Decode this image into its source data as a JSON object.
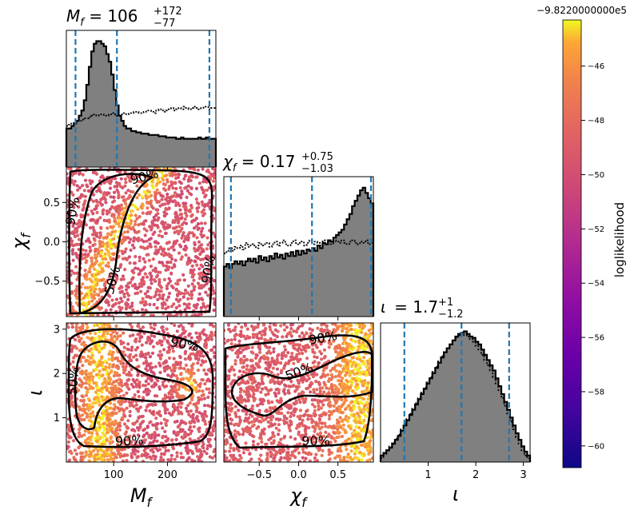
{
  "chart_data": {
    "type": "corner",
    "panels": [
      {
        "type": "histogram",
        "param": "M_f",
        "title": {
          "lhs": "M",
          "sub": "f",
          "value": "106",
          "plus": "+172",
          "minus": "−77"
        },
        "quantiles": [
          29,
          106,
          278
        ],
        "bins": {
          "x0": 12,
          "x1": 290,
          "heights": [
            0.3,
            0.3,
            0.32,
            0.34,
            0.36,
            0.4,
            0.44,
            0.52,
            0.64,
            0.78,
            0.9,
            0.96,
            0.98,
            0.98,
            0.96,
            0.94,
            0.88,
            0.82,
            0.72,
            0.6,
            0.48,
            0.4,
            0.36,
            0.32,
            0.3,
            0.3,
            0.28,
            0.28,
            0.27,
            0.27,
            0.26,
            0.26,
            0.26,
            0.25,
            0.25,
            0.25,
            0.25,
            0.24,
            0.24,
            0.24,
            0.23,
            0.23,
            0.23,
            0.23,
            0.22,
            0.22,
            0.23,
            0.22,
            0.22,
            0.22,
            0.22,
            0.22,
            0.22,
            0.23,
            0.22,
            0.22,
            0.23,
            0.22,
            0.22,
            0.22
          ]
        },
        "prior_heights": [
          0.32,
          0.33,
          0.34,
          0.35,
          0.36,
          0.36,
          0.37,
          0.38,
          0.38,
          0.39,
          0.4,
          0.41,
          0.4,
          0.41,
          0.41,
          0.4,
          0.4,
          0.41,
          0.42,
          0.41,
          0.4,
          0.4,
          0.41,
          0.42,
          0.41,
          0.42,
          0.42,
          0.43,
          0.43,
          0.42,
          0.42,
          0.43,
          0.44,
          0.44,
          0.43,
          0.42,
          0.44,
          0.45,
          0.44,
          0.43,
          0.44,
          0.45,
          0.46,
          0.44,
          0.45,
          0.46,
          0.45,
          0.47,
          0.46,
          0.45,
          0.46,
          0.47,
          0.46,
          0.45,
          0.46,
          0.47,
          0.47,
          0.45,
          0.46,
          0.46
        ]
      },
      {
        "type": "histogram",
        "param": "chi_f",
        "title": {
          "lhs": "χ",
          "sub": "f",
          "value": "0.17",
          "plus": "+0.75",
          "minus": "−1.03"
        },
        "quantiles": [
          -0.86,
          0.17,
          0.92
        ],
        "bins": {
          "x0": -0.95,
          "x1": 0.95,
          "heights": [
            0.38,
            0.4,
            0.37,
            0.4,
            0.42,
            0.4,
            0.42,
            0.39,
            0.42,
            0.44,
            0.42,
            0.44,
            0.41,
            0.46,
            0.43,
            0.45,
            0.42,
            0.46,
            0.44,
            0.48,
            0.45,
            0.47,
            0.44,
            0.48,
            0.46,
            0.49,
            0.46,
            0.5,
            0.47,
            0.5,
            0.48,
            0.51,
            0.5,
            0.52,
            0.5,
            0.54,
            0.52,
            0.56,
            0.55,
            0.58,
            0.57,
            0.6,
            0.62,
            0.64,
            0.66,
            0.7,
            0.74,
            0.78,
            0.84,
            0.88,
            0.92,
            0.96,
            0.98,
            0.94,
            0.9,
            0.86
          ]
        },
        "prior_heights": [
          0.48,
          0.5,
          0.52,
          0.5,
          0.53,
          0.52,
          0.54,
          0.51,
          0.56,
          0.53,
          0.55,
          0.54,
          0.52,
          0.56,
          0.54,
          0.55,
          0.56,
          0.53,
          0.55,
          0.57,
          0.54,
          0.56,
          0.58,
          0.55,
          0.54,
          0.56,
          0.58,
          0.55,
          0.56,
          0.57,
          0.54,
          0.56,
          0.58,
          0.55,
          0.57,
          0.56,
          0.54,
          0.58,
          0.56,
          0.57,
          0.55,
          0.58,
          0.57,
          0.56,
          0.58,
          0.56,
          0.55,
          0.57,
          0.58,
          0.56,
          0.55,
          0.57,
          0.56,
          0.58,
          0.55,
          0.56
        ]
      },
      {
        "type": "histogram",
        "param": "iota",
        "title": {
          "lhs": "ι",
          "sub": "",
          "value": "1.7",
          "plus": "+1",
          "minus": "−1.2"
        },
        "quantiles": [
          0.5,
          1.7,
          2.7
        ],
        "bins": {
          "x0": 0.0,
          "x1": 3.14,
          "heights": [
            0.05,
            0.07,
            0.09,
            0.11,
            0.14,
            0.17,
            0.2,
            0.24,
            0.28,
            0.32,
            0.36,
            0.4,
            0.44,
            0.48,
            0.52,
            0.56,
            0.6,
            0.64,
            0.68,
            0.72,
            0.76,
            0.8,
            0.84,
            0.87,
            0.9,
            0.93,
            0.96,
            0.98,
            0.99,
            1.0,
            0.98,
            0.96,
            0.95,
            0.92,
            0.9,
            0.86,
            0.82,
            0.78,
            0.74,
            0.7,
            0.64,
            0.58,
            0.52,
            0.46,
            0.4,
            0.34,
            0.28,
            0.22,
            0.17,
            0.12,
            0.08,
            0.05
          ]
        },
        "prior_heights": [
          0.03,
          0.06,
          0.09,
          0.12,
          0.15,
          0.18,
          0.21,
          0.25,
          0.29,
          0.33,
          0.37,
          0.41,
          0.45,
          0.49,
          0.53,
          0.57,
          0.61,
          0.65,
          0.69,
          0.73,
          0.77,
          0.81,
          0.84,
          0.87,
          0.9,
          0.93,
          0.95,
          0.97,
          0.98,
          0.97,
          0.96,
          0.94,
          0.92,
          0.89,
          0.86,
          0.82,
          0.78,
          0.74,
          0.7,
          0.65,
          0.6,
          0.55,
          0.49,
          0.43,
          0.37,
          0.31,
          0.25,
          0.19,
          0.14,
          0.09,
          0.05,
          0.03
        ]
      }
    ],
    "scatter_panels": [
      {
        "x": "M_f",
        "y": "chi_f",
        "xlim": [
          12,
          290
        ],
        "ylim": [
          -0.95,
          0.95
        ],
        "contours": [
          "50%",
          "90%",
          "90%",
          "90%"
        ]
      },
      {
        "x": "M_f",
        "y": "iota",
        "xlim": [
          12,
          290
        ],
        "ylim": [
          0.0,
          3.14
        ],
        "contours": [
          "90%",
          "50%",
          "90%"
        ]
      },
      {
        "x": "chi_f",
        "y": "iota",
        "xlim": [
          -0.95,
          0.95
        ],
        "ylim": [
          0.0,
          3.14
        ],
        "contours": [
          "90%",
          "50%",
          "90%"
        ]
      }
    ],
    "axes": {
      "M_f": {
        "label": "M",
        "sub": "f",
        "ticks": [
          100,
          200
        ],
        "tick_labels": [
          "100",
          "200"
        ]
      },
      "chi_f": {
        "label": "χ",
        "sub": "f",
        "ticks": [
          -0.5,
          0.0,
          0.5
        ],
        "tick_labels": [
          "−0.5",
          "0.0",
          "0.5"
        ]
      },
      "iota": {
        "label": "ι",
        "sub": "",
        "ticks": [
          1,
          2,
          3
        ],
        "tick_labels": [
          "1",
          "2",
          "3"
        ]
      }
    },
    "colorbar": {
      "label": "loglikelihood",
      "offset_text": "−9.8220000000e5",
      "range": [
        -60.8,
        -44.3
      ],
      "ticks": [
        -46,
        -48,
        -50,
        -52,
        -54,
        -56,
        -58,
        -60
      ],
      "tick_labels": [
        "−46",
        "−48",
        "−50",
        "−52",
        "−54",
        "−56",
        "−58",
        "−60"
      ],
      "colormap": "plasma"
    },
    "colors": {
      "hist_fill": "#808080",
      "quantile_line": "#1f77b4",
      "contour": "#000000"
    }
  }
}
